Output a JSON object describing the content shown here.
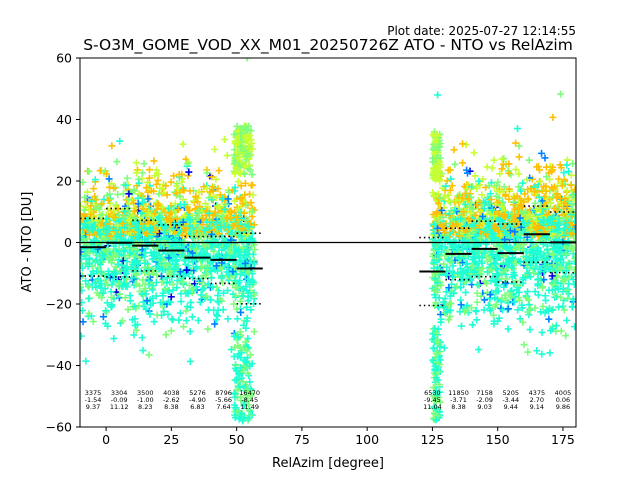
{
  "figure": {
    "plot_date": "Plot date: 2025-07-27 12:14:55",
    "title": "S-O3M_GOME_VOD_XX_M01_20250726Z ATO - NTO vs RelAzim"
  },
  "chart_data": {
    "type": "scatter",
    "title": "S-O3M_GOME_VOD_XX_M01_20250726Z ATO - NTO vs RelAzim",
    "xlabel": "RelAzim [degree]",
    "ylabel": "ATO - NTO [DU]",
    "xlim": [
      -10,
      180
    ],
    "ylim": [
      -60,
      60
    ],
    "xticks": [
      0,
      25,
      50,
      75,
      100,
      125,
      150,
      175
    ],
    "yticks": [
      -60,
      -40,
      -20,
      0,
      20,
      40,
      60
    ],
    "reference_line_y": 0,
    "bins": [
      {
        "x0": -10,
        "x1": 0,
        "n": "3375",
        "mean": "-1.54",
        "std": "9.37",
        "mean_value": -1.54,
        "std_value": 9.37
      },
      {
        "x0": 0,
        "x1": 10,
        "n": "3304",
        "mean": "-0.09",
        "std": "11.12",
        "mean_value": -0.09,
        "std_value": 11.12
      },
      {
        "x0": 10,
        "x1": 20,
        "n": "3500",
        "mean": "-1.00",
        "std": "8.23",
        "mean_value": -1.0,
        "std_value": 8.23
      },
      {
        "x0": 20,
        "x1": 30,
        "n": "4038",
        "mean": "-2.62",
        "std": "8.38",
        "mean_value": -2.62,
        "std_value": 8.38
      },
      {
        "x0": 30,
        "x1": 40,
        "n": "5276",
        "mean": "-4.90",
        "std": "6.83",
        "mean_value": -4.9,
        "std_value": 6.83
      },
      {
        "x0": 40,
        "x1": 50,
        "n": "8796",
        "mean": "-5.66",
        "std": "7.64",
        "mean_value": -5.66,
        "std_value": 7.64
      },
      {
        "x0": 50,
        "x1": 60,
        "n": "16470",
        "mean": "-8.45",
        "std": "11.49",
        "mean_value": -8.45,
        "std_value": 11.49
      },
      {
        "x0": 120,
        "x1": 130,
        "n": "6530",
        "mean": "-9.45",
        "std": "11.04",
        "mean_value": -9.45,
        "std_value": 11.04
      },
      {
        "x0": 130,
        "x1": 140,
        "n": "11850",
        "mean": "-3.71",
        "std": "8.38",
        "mean_value": -3.71,
        "std_value": 8.38
      },
      {
        "x0": 140,
        "x1": 150,
        "n": "7158",
        "mean": "-2.09",
        "std": "9.03",
        "mean_value": -2.09,
        "std_value": 9.03
      },
      {
        "x0": 150,
        "x1": 160,
        "n": "5205",
        "mean": "-3.44",
        "std": "9.44",
        "mean_value": -3.44,
        "std_value": 9.44
      },
      {
        "x0": 160,
        "x1": 170,
        "n": "4375",
        "mean": "2.70",
        "std": "9.14",
        "mean_value": 2.7,
        "std_value": 9.14
      },
      {
        "x0": 170,
        "x1": 180,
        "n": "4005",
        "mean": "0.06",
        "std": "9.86",
        "mean_value": 0.06,
        "std_value": 9.86
      }
    ],
    "scatter_regions": [
      {
        "x_range": [
          -10,
          57
        ],
        "y_core": [
          -30,
          20
        ],
        "y_extreme": [
          -58,
          60
        ]
      },
      {
        "x_range": [
          125,
          180
        ],
        "y_core": [
          -32,
          22
        ],
        "y_extreme": [
          -58,
          48
        ]
      }
    ],
    "marker": "+",
    "colors": {
      "dense": "#1fffd4",
      "mid": "#7dff7a",
      "yellow": "#ffc000",
      "lime": "#c6ff33",
      "blue": "#0080ff",
      "navy": "#0000dd"
    },
    "grid": false
  }
}
